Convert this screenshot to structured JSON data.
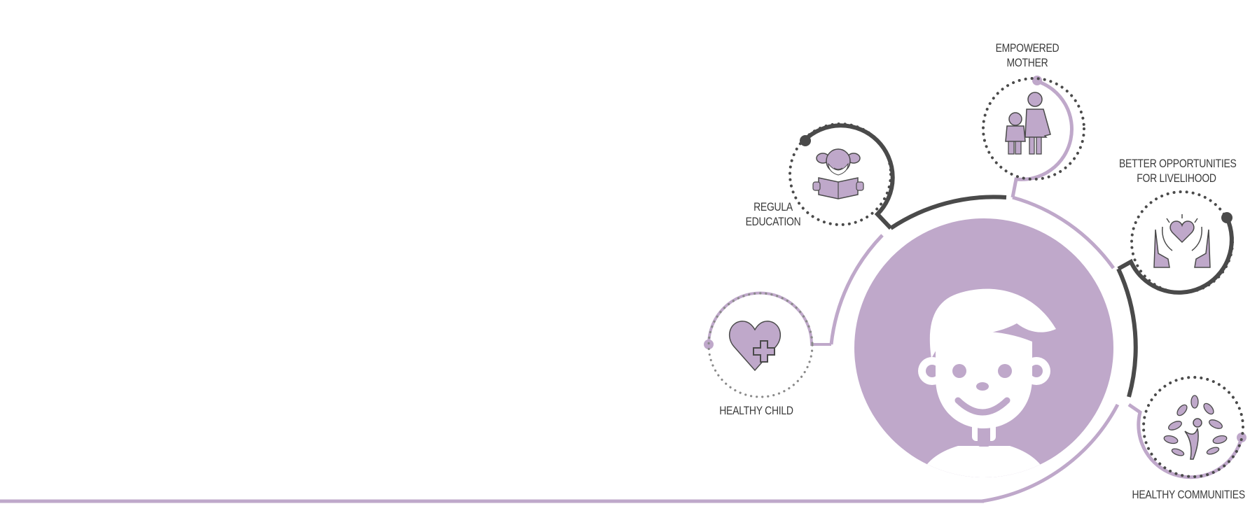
{
  "diagram": {
    "colors": {
      "accent": "#bfa8ca",
      "dark": "#4a4a4a",
      "background": "#ffffff"
    },
    "center_icon": "smiling-child-icon",
    "nodes": [
      {
        "id": "healthy-child",
        "icon": "heart-plus-icon",
        "label_lines": [
          "HEALTHY CHILD"
        ]
      },
      {
        "id": "regular-education",
        "icon": "girl-reading-icon",
        "label_lines": [
          "REGULA",
          "EDUCATION"
        ]
      },
      {
        "id": "empowered-mother",
        "icon": "mother-and-child-icon",
        "label_lines": [
          "EMPOWERED",
          "MOTHER"
        ]
      },
      {
        "id": "better-opportunities",
        "icon": "hands-holding-heart-icon",
        "label_lines": [
          "BETTER OPPORTUNITIES",
          "FOR LIVELIHOOD"
        ]
      },
      {
        "id": "healthy-communities",
        "icon": "people-tree-icon",
        "label_lines": [
          "HEALTHY COMMUNITIES"
        ]
      }
    ]
  }
}
